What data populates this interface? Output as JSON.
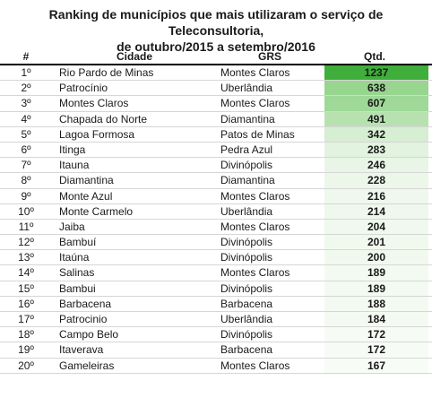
{
  "title_line1": "Ranking de municípios que mais utilizaram o serviço de Teleconsultoria,",
  "title_line2": "de outubro/2015 a setembro/2016",
  "headers": {
    "rank": "#",
    "city": "Cidade",
    "grs": "GRS",
    "qtd": "Qtd. Teleconsultorias"
  },
  "rows": [
    {
      "rank": "1º",
      "city": "Rio Pardo de Minas",
      "grs": "Montes Claros",
      "qtd": "1237",
      "bg": "#3fae3a"
    },
    {
      "rank": "2º",
      "city": "Patrocínio",
      "grs": "Uberlândia",
      "qtd": "638",
      "bg": "#98d58f"
    },
    {
      "rank": "3º",
      "city": "Montes Claros",
      "grs": "Montes Claros",
      "qtd": "607",
      "bg": "#9fd898"
    },
    {
      "rank": "4º",
      "city": "Chapada do Norte",
      "grs": "Diamantina",
      "qtd": "491",
      "bg": "#b7e2b0"
    },
    {
      "rank": "5º",
      "city": "Lagoa Formosa",
      "grs": "Patos de Minas",
      "qtd": "342",
      "bg": "#d6eed2"
    },
    {
      "rank": "6º",
      "city": "Itinga",
      "grs": "Pedra Azul",
      "qtd": "283",
      "bg": "#e2f3df"
    },
    {
      "rank": "7º",
      "city": "Itauna",
      "grs": "Divinópolis",
      "qtd": "246",
      "bg": "#e9f6e7"
    },
    {
      "rank": "8º",
      "city": "Diamantina",
      "grs": "Diamantina",
      "qtd": "228",
      "bg": "#ecf7ea"
    },
    {
      "rank": "9º",
      "city": "Monte Azul",
      "grs": "Montes Claros",
      "qtd": "216",
      "bg": "#eef8ec"
    },
    {
      "rank": "10º",
      "city": "Monte Carmelo",
      "grs": "Uberlândia",
      "qtd": "214",
      "bg": "#eef8ec"
    },
    {
      "rank": "11º",
      "city": "Jaiba",
      "grs": "Montes Claros",
      "qtd": "204",
      "bg": "#f0f9ee"
    },
    {
      "rank": "12º",
      "city": "Bambuí",
      "grs": "Divinópolis",
      "qtd": "201",
      "bg": "#f0f9ee"
    },
    {
      "rank": "13º",
      "city": "Itaúna",
      "grs": "Divinópolis",
      "qtd": "200",
      "bg": "#f1f9ef"
    },
    {
      "rank": "14º",
      "city": "Salinas",
      "grs": "Montes Claros",
      "qtd": "189",
      "bg": "#f3faf1"
    },
    {
      "rank": "15º",
      "city": "Bambui",
      "grs": "Divinópolis",
      "qtd": "189",
      "bg": "#f3faf1"
    },
    {
      "rank": "16º",
      "city": "Barbacena",
      "grs": "Barbacena",
      "qtd": "188",
      "bg": "#f3faf1"
    },
    {
      "rank": "17º",
      "city": "Patrocinio",
      "grs": "Uberlândia",
      "qtd": "184",
      "bg": "#f4faf2"
    },
    {
      "rank": "18º",
      "city": "Campo Belo",
      "grs": "Divinópolis",
      "qtd": "172",
      "bg": "#f6fbf5"
    },
    {
      "rank": "19º",
      "city": "Itaverava",
      "grs": "Barbacena",
      "qtd": "172",
      "bg": "#f6fbf5"
    },
    {
      "rank": "20º",
      "city": "Gameleiras",
      "grs": "Montes Claros",
      "qtd": "167",
      "bg": "#f8fcf7"
    }
  ]
}
